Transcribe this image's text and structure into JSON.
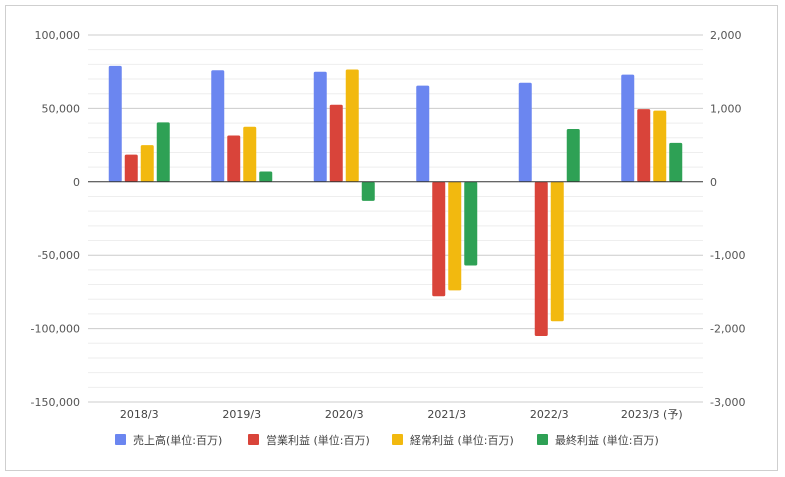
{
  "chart_data": {
    "type": "bar",
    "categories": [
      "2018/3",
      "2019/3",
      "2020/3",
      "2021/3",
      "2022/3",
      "2023/3 (予)"
    ],
    "series": [
      {
        "name": "売上高(単位:百万)",
        "color": "#6b86f0",
        "axis": "left",
        "values": [
          79000,
          76000,
          75000,
          65500,
          67500,
          73000
        ]
      },
      {
        "name": "営業利益 (単位:百万)",
        "color": "#d9443a",
        "axis": "right",
        "values": [
          370,
          630,
          1050,
          -1560,
          -2100,
          990
        ]
      },
      {
        "name": "経常利益 (単位:百万)",
        "color": "#f2b90f",
        "axis": "right",
        "values": [
          500,
          750,
          1530,
          -1480,
          -1900,
          970
        ]
      },
      {
        "name": "最終利益 (単位:百万)",
        "color": "#2ea155",
        "axis": "right",
        "values": [
          810,
          140,
          -260,
          -1140,
          720,
          530
        ]
      }
    ],
    "left_axis": {
      "ylim": [
        -150000,
        100000
      ],
      "ticks": [
        100000,
        50000,
        0,
        -50000,
        -100000,
        -150000
      ],
      "tick_labels": [
        "100,000",
        "50,000",
        "0",
        "-50,000",
        "-100,000",
        "-150,000"
      ]
    },
    "right_axis": {
      "ylim": [
        -3000,
        2000
      ],
      "ticks": [
        2000,
        1000,
        0,
        -1000,
        -2000,
        -3000
      ],
      "tick_labels": [
        "2,000",
        "1,000",
        "0",
        "-1,000",
        "-2,000",
        "-3,000"
      ]
    },
    "minor_grid_step_left": 10000,
    "legend_position": "bottom",
    "grid": true
  }
}
